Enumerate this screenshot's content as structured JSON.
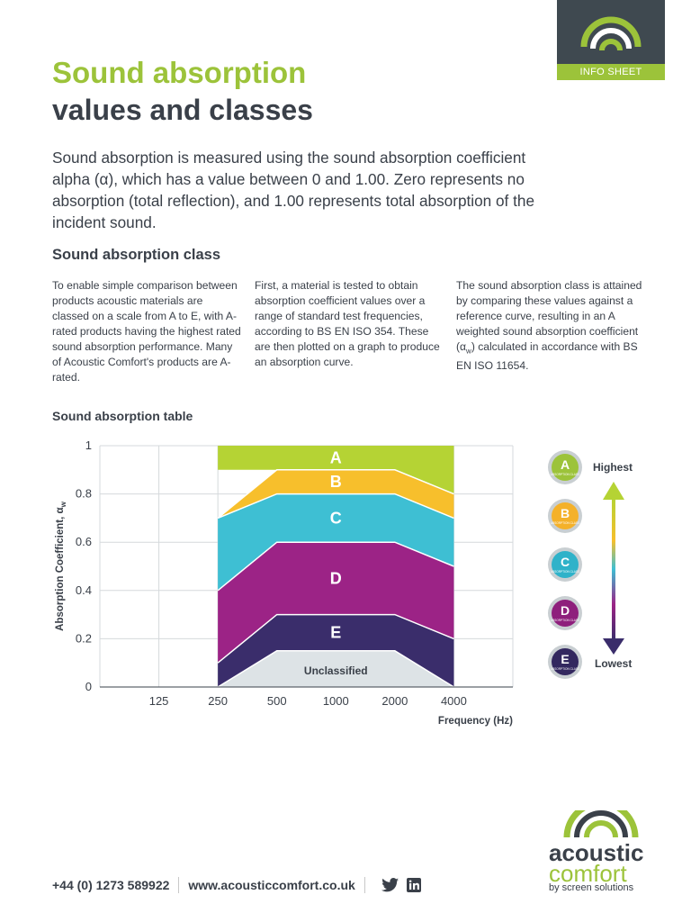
{
  "badge": {
    "label": "INFO SHEET"
  },
  "header": {
    "title_line1": "Sound absorption",
    "title_line2": "values and classes"
  },
  "intro": "Sound absorption is measured using the sound absorption coefficient alpha (α), which has a value between 0 and 1.00. Zero represents no absorption (total reflection), and 1.00 represents total absorption of the incident sound.",
  "section": {
    "heading": "Sound absorption class",
    "col1": "To enable simple comparison between products acoustic materials are classed on a scale from A to E, with A-rated products having the highest rated sound absorption performance. Many of Acoustic Comfort's products are A-rated.",
    "col2": "First, a material is tested to obtain absorption coefficient values over a range of standard test frequencies, according to BS EN ISO 354. These are then plotted on a graph to produce an absorption curve.",
    "col3_a": "The sound absorption class is attained by comparing these values against a reference curve, resulting in an A weighted sound absorption coefficient (α",
    "col3_sub": "w",
    "col3_b": ") calculated in accordance with BS EN ISO 11654."
  },
  "table_heading": "Sound absorption table",
  "chart_data": {
    "type": "area",
    "x": [
      "125",
      "250",
      "500",
      "1000",
      "2000",
      "4000"
    ],
    "xlabel": "Frequency (Hz)",
    "ylabel": "Absorption Coefficient, α",
    "ylabel_sub": "w",
    "ylim": [
      0,
      1
    ],
    "yticks": [
      "0",
      "0.2",
      "0.4",
      "0.6",
      "0.8",
      "1"
    ],
    "grid": true,
    "bands": [
      {
        "label": "A",
        "color": "#b5d334",
        "upper": [
          1.0,
          1.0,
          1.0,
          1.0,
          1.0
        ],
        "lower": [
          0.9,
          0.9,
          0.9,
          0.9,
          0.8
        ]
      },
      {
        "label": "B",
        "color": "#f7bf2c",
        "upper": [
          0.7,
          0.9,
          0.9,
          0.9,
          0.8
        ],
        "lower": [
          0.7,
          0.8,
          0.8,
          0.8,
          0.7
        ]
      },
      {
        "label": "C",
        "color": "#3ebfd3",
        "upper": [
          0.7,
          0.8,
          0.8,
          0.8,
          0.7
        ],
        "lower": [
          0.4,
          0.6,
          0.6,
          0.6,
          0.5
        ]
      },
      {
        "label": "D",
        "color": "#9c2386",
        "upper": [
          0.4,
          0.6,
          0.6,
          0.6,
          0.5
        ],
        "lower": [
          0.1,
          0.3,
          0.3,
          0.3,
          0.2
        ]
      },
      {
        "label": "E",
        "color": "#3a2d6b",
        "upper": [
          0.1,
          0.3,
          0.3,
          0.3,
          0.2
        ],
        "lower": [
          0.0,
          0.15,
          0.15,
          0.15,
          0.0
        ]
      },
      {
        "label": "Unclassified",
        "color": "#dde3e6",
        "upper": [
          0.0,
          0.15,
          0.15,
          0.15,
          0.0
        ],
        "lower": [
          0,
          0,
          0,
          0,
          0
        ]
      }
    ]
  },
  "legend": {
    "highest": "Highest",
    "lowest": "Lowest",
    "items": [
      {
        "letter": "A",
        "small": "ABSORPTION CLASS",
        "color": "#9cc33a"
      },
      {
        "letter": "B",
        "small": "ABSORPTION CLASS",
        "color": "#f4b12a"
      },
      {
        "letter": "C",
        "small": "ABSORPTION CLASS",
        "color": "#2fb2c9"
      },
      {
        "letter": "D",
        "small": "ABSORPTION CLASS",
        "color": "#8e1f7c"
      },
      {
        "letter": "E",
        "small": "ABSORPTION CLASS",
        "color": "#33285f"
      }
    ]
  },
  "footer": {
    "phone": "+44 (0) 1273 589922",
    "website": "www.acousticcomfort.co.uk"
  },
  "logo": {
    "line1": "acoustic",
    "line2": "comfort",
    "line3": "by screen solutions"
  }
}
